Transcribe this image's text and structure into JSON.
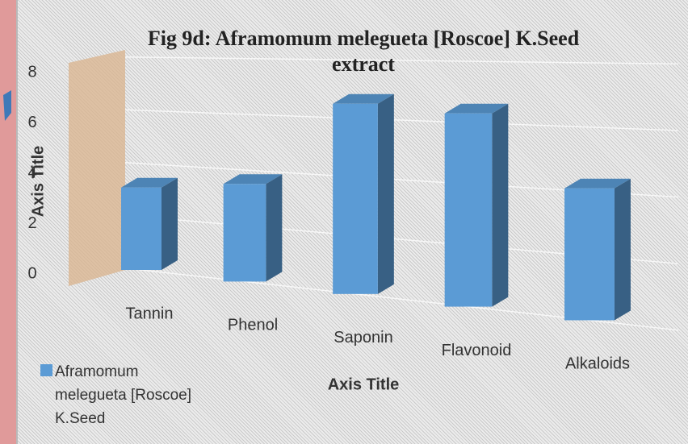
{
  "chart_data": {
    "type": "bar3d",
    "title": "Fig 9d: Aframomum melegueta [Roscoe] K.Seed extract",
    "categories": [
      "Tannin",
      "Phenol",
      "Saponin",
      "Flavonoid",
      "Alkaloids"
    ],
    "series": [
      {
        "name": "Aframomum melegueta [Roscoe] K.Seed",
        "color": "#5b9bd5",
        "values": [
          3.1,
          3.5,
          6.5,
          6.3,
          4.1
        ]
      }
    ],
    "xlabel": "Axis Title",
    "ylabel": "Axis Title",
    "ylim": [
      0,
      8
    ],
    "yticks": [
      0,
      2,
      4,
      6,
      8
    ],
    "grid": true
  }
}
